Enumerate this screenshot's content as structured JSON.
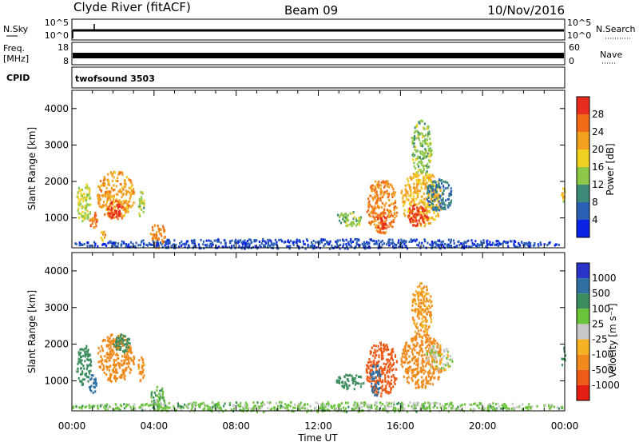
{
  "header": {
    "station": "Clyde River (fitACF)",
    "beam": "Beam 09",
    "date": "10/Nov/2016"
  },
  "top_panel_labels": {
    "nsky": "N.Sky",
    "nsky_hi": "10^5",
    "nsky_lo": "10^0",
    "nsearch": "N.Search",
    "nsearch_hi": "10^5",
    "nsearch_lo": "10^0",
    "freq_l1": "Freq.",
    "freq_l2": "[MHz]",
    "freq_hi": "18",
    "freq_lo": "8",
    "nave": "Nave",
    "nave_hi": "60",
    "nave_lo": "0",
    "cpid": "CPID",
    "cpid_value": "twofsound 3503"
  },
  "axes": {
    "ylabel": "Slant Range [km]",
    "xlabel": "Time UT",
    "yticks": [
      "1000",
      "2000",
      "3000",
      "4000"
    ],
    "xticks": [
      "00:00",
      "04:00",
      "08:00",
      "12:00",
      "16:00",
      "20:00",
      "00:00"
    ]
  },
  "power_scale": {
    "label": "Power [dB]",
    "ticks": [
      "4",
      "8",
      "12",
      "16",
      "20",
      "24",
      "28"
    ],
    "colors": [
      "#0a23e6",
      "#2a5fb4",
      "#3d8a78",
      "#8ec84a",
      "#f0d020",
      "#f2a020",
      "#f06a18",
      "#e82c20"
    ]
  },
  "velocity_scale": {
    "label": "Velocity  [m s⁻¹]",
    "ticks": [
      "1000",
      "500",
      "100",
      "25",
      "-25",
      "-100",
      "-500",
      "-1000"
    ],
    "colors": [
      "#2a34c8",
      "#2f6fa2",
      "#3c8e5e",
      "#6cc43c",
      "#c8c8c8",
      "#f5b324",
      "#f08a1c",
      "#ee5a18",
      "#e21e12"
    ]
  },
  "chart_data": [
    {
      "type": "heatmap",
      "title": "",
      "xlabel": "",
      "ylabel": "Slant Range [km]",
      "colorbar_label": "Power [dB]",
      "x_range_hours_ut": [
        0,
        24
      ],
      "y_range_km": [
        180,
        4500
      ],
      "colorbar_ticks": [
        4,
        8,
        12,
        16,
        20,
        24,
        28
      ],
      "regions": [
        {
          "t0": 0.2,
          "t1": 0.9,
          "r0": 900,
          "r1": 2000,
          "value": 16
        },
        {
          "t0": 0.8,
          "t1": 1.2,
          "r0": 700,
          "r1": 1200,
          "value": 26
        },
        {
          "t0": 1.3,
          "t1": 1.6,
          "r0": 400,
          "r1": 700,
          "value": 22
        },
        {
          "t0": 1.2,
          "t1": 3.0,
          "r0": 1000,
          "r1": 2300,
          "value": 22
        },
        {
          "t0": 1.7,
          "t1": 2.5,
          "r0": 1000,
          "r1": 1500,
          "value": 30
        },
        {
          "t0": 3.2,
          "t1": 3.5,
          "r0": 1000,
          "r1": 1800,
          "value": 14
        },
        {
          "t0": 3.8,
          "t1": 4.5,
          "r0": 200,
          "r1": 900,
          "value": 24
        },
        {
          "t0": 0,
          "t1": 24,
          "r0": 180,
          "r1": 450,
          "value": 5
        },
        {
          "t0": 12.8,
          "t1": 14.2,
          "r0": 800,
          "r1": 1200,
          "value": 14
        },
        {
          "t0": 14.3,
          "t1": 15.8,
          "r0": 600,
          "r1": 2100,
          "value": 24
        },
        {
          "t0": 14.8,
          "t1": 15.3,
          "r0": 600,
          "r1": 1200,
          "value": 29
        },
        {
          "t0": 16.0,
          "t1": 18.0,
          "r0": 800,
          "r1": 2300,
          "value": 20
        },
        {
          "t0": 16.3,
          "t1": 17.3,
          "r0": 800,
          "r1": 1400,
          "value": 29
        },
        {
          "t0": 17.2,
          "t1": 18.5,
          "r0": 1200,
          "r1": 2100,
          "value": 8
        },
        {
          "t0": 16.5,
          "t1": 17.5,
          "r0": 2200,
          "r1": 3700,
          "value": 14
        },
        {
          "t0": 23.8,
          "t1": 24.0,
          "r0": 1400,
          "r1": 2000,
          "value": 18
        }
      ]
    },
    {
      "type": "heatmap",
      "title": "",
      "xlabel": "Time UT",
      "ylabel": "Slant Range [km]",
      "colorbar_label": "Velocity  [m s⁻¹]",
      "x_range_hours_ut": [
        0,
        24
      ],
      "y_range_km": [
        180,
        4500
      ],
      "colorbar_ticks": [
        1000,
        500,
        100,
        25,
        -25,
        -100,
        -500,
        -1000
      ],
      "regions": [
        {
          "t0": 0.2,
          "t1": 0.9,
          "r0": 900,
          "r1": 2000,
          "value": 200
        },
        {
          "t0": 0.8,
          "t1": 1.2,
          "r0": 700,
          "r1": 1200,
          "value": 600
        },
        {
          "t0": 1.2,
          "t1": 3.0,
          "r0": 1000,
          "r1": 2300,
          "value": -200
        },
        {
          "t0": 2.0,
          "t1": 2.8,
          "r0": 1800,
          "r1": 2300,
          "value": 300
        },
        {
          "t0": 3.2,
          "t1": 3.5,
          "r0": 1000,
          "r1": 1800,
          "value": -150
        },
        {
          "t0": 3.8,
          "t1": 4.5,
          "r0": 200,
          "r1": 900,
          "value": 80
        },
        {
          "t0": 0,
          "t1": 24,
          "r0": 180,
          "r1": 450,
          "value": 50
        },
        {
          "t0": 12.8,
          "t1": 14.2,
          "r0": 800,
          "r1": 1200,
          "value": 300
        },
        {
          "t0": 14.3,
          "t1": 15.8,
          "r0": 600,
          "r1": 2100,
          "value": -600
        },
        {
          "t0": 14.5,
          "t1": 15.0,
          "r0": 600,
          "r1": 1500,
          "value": 600
        },
        {
          "t0": 16.0,
          "t1": 18.0,
          "r0": 800,
          "r1": 2300,
          "value": -300
        },
        {
          "t0": 17.2,
          "t1": 18.5,
          "r0": 1300,
          "r1": 2000,
          "value": 0
        },
        {
          "t0": 16.5,
          "t1": 17.5,
          "r0": 2200,
          "r1": 3700,
          "value": -100
        },
        {
          "t0": 23.8,
          "t1": 24.0,
          "r0": 1400,
          "r1": 2000,
          "value": 200
        }
      ]
    }
  ]
}
